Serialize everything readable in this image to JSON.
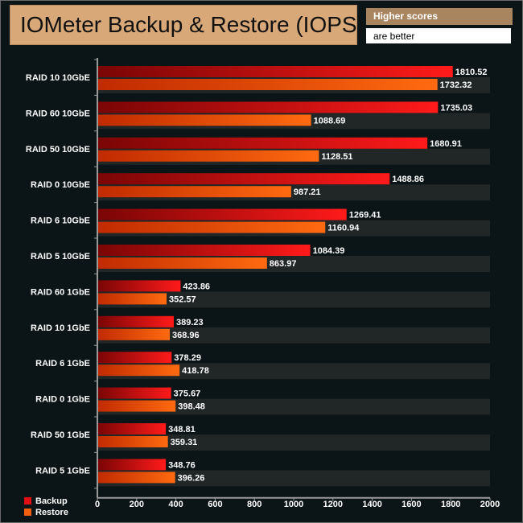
{
  "note": {
    "line1": "Higher scores",
    "line2": "are better"
  },
  "chart_data": {
    "type": "bar",
    "orientation": "horizontal",
    "title": "IOMeter Backup & Restore (IOPS)",
    "categories": [
      "RAID 10 10GbE",
      "RAID 60 10GbE",
      "RAID 50 10GbE",
      "RAID 0 10GbE",
      "RAID 6 10GbE",
      "RAID 5 10GbE",
      "RAID 60 1GbE",
      "RAID 10 1GbE",
      "RAID 6 1GbE",
      "RAID 0 1GbE",
      "RAID 50 1GbE",
      "RAID 5 1GbE"
    ],
    "series": [
      {
        "name": "Backup",
        "color": "#e01010",
        "values": [
          1810.52,
          1735.03,
          1680.91,
          1488.86,
          1269.41,
          1084.39,
          423.86,
          389.23,
          378.29,
          375.67,
          348.81,
          348.76
        ],
        "labels": [
          "1810.52",
          "1735.03",
          "1680.91",
          "1488.86",
          "1269.41",
          "1084.39",
          "423.86",
          "389.23",
          "378.29",
          "375.67",
          "348.81",
          "348.76"
        ]
      },
      {
        "name": "Restore",
        "color": "#f06010",
        "values": [
          1732.32,
          1088.69,
          1128.51,
          987.21,
          1160.94,
          863.97,
          352.57,
          368.96,
          418.78,
          398.48,
          359.31,
          396.26
        ],
        "labels": [
          "1732.32",
          "1088.69",
          "1128.51",
          "987.21",
          "1160.94",
          "863.97",
          "352.57",
          "368.96",
          "418.78",
          "398.48",
          "359.31",
          "396.26"
        ]
      }
    ],
    "xlim": [
      0,
      2000
    ],
    "xticks": [
      "0",
      "200",
      "400",
      "600",
      "800",
      "1000",
      "1200",
      "1400",
      "1600",
      "1800",
      "2000"
    ],
    "grid": false,
    "legend": "bottom-left"
  }
}
